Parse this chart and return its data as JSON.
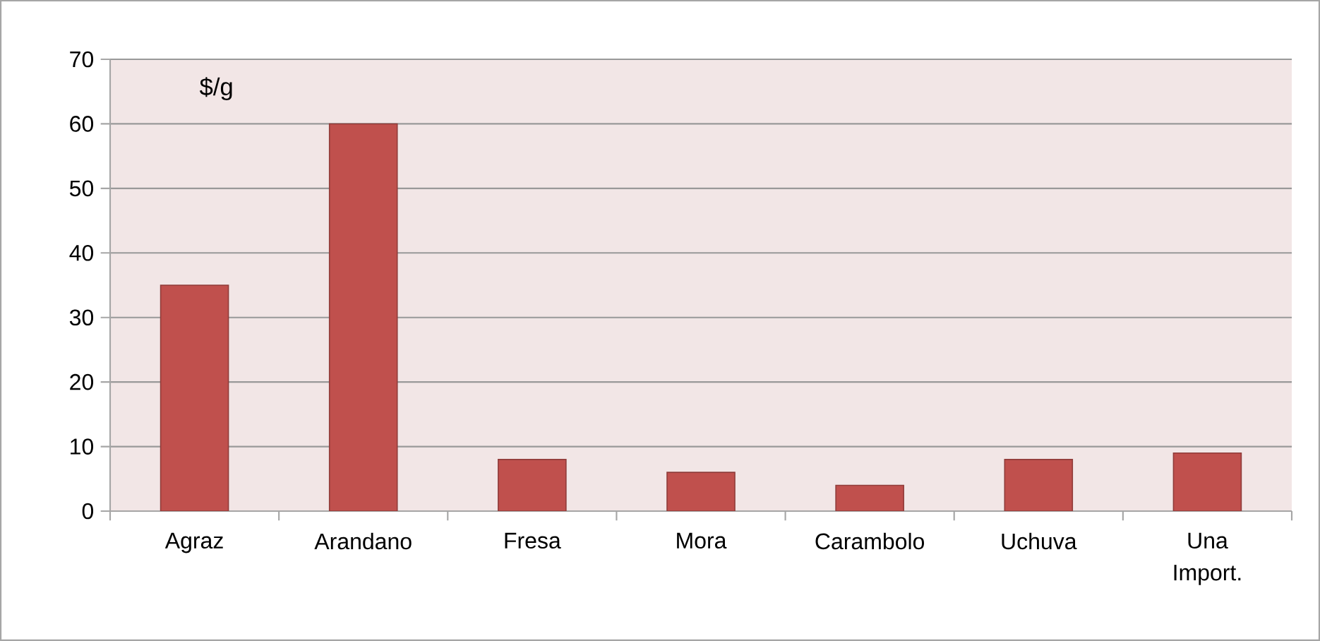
{
  "chart_data": {
    "type": "bar",
    "ylabel": "$/g",
    "categories": [
      "Agraz",
      "Arandano",
      "Fresa",
      "Mora",
      "Carambolo",
      "Uchuva",
      "Una Import."
    ],
    "values": [
      35,
      60,
      8,
      6,
      4,
      8,
      9
    ],
    "color": "#c0504d",
    "ylim": [
      0,
      70
    ],
    "yticks": [
      0,
      10,
      20,
      30,
      40,
      50,
      60,
      70
    ],
    "grid": "y"
  }
}
